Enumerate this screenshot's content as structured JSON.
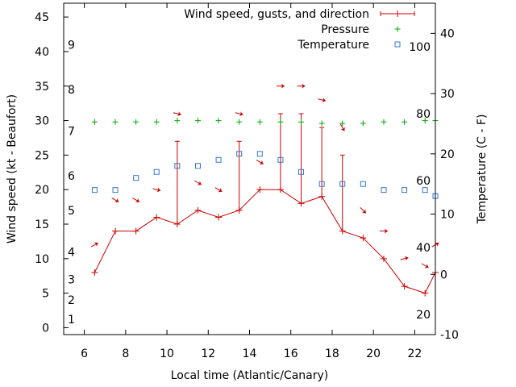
{
  "chart_data": {
    "type": "line",
    "title": "",
    "xlabel": "Local time (Atlantic/Canary)",
    "ylabel_left": "Wind speed (kt - Beaufort)",
    "ylabel_right": "Temperature (C - F)",
    "x_range": [
      5,
      23
    ],
    "y_left_range": [
      -1,
      47
    ],
    "y_right_range": [
      -10,
      45
    ],
    "x_ticks": [
      "6",
      "8",
      "10",
      "12",
      "14",
      "16",
      "18",
      "20",
      "22"
    ],
    "y_left_ticks": [
      "0",
      "5",
      "10",
      "15",
      "20",
      "25",
      "30",
      "35",
      "40",
      "45"
    ],
    "y_right_ticks": [
      "-10",
      "0",
      "10",
      "20",
      "30",
      "40"
    ],
    "beaufort_labels": [
      "1",
      "2",
      "3",
      "4",
      "5",
      "6",
      "7",
      "8",
      "9"
    ],
    "fahrenheit_labels": [
      "20",
      "40",
      "60",
      "80",
      "100"
    ],
    "legend": {
      "placement": "top-right",
      "entries": [
        {
          "label": "Wind speed, gusts, and direction",
          "color": "#cc0000",
          "marker": "line-plus"
        },
        {
          "label": "Pressure",
          "color": "#00aa00",
          "marker": "plus"
        },
        {
          "label": "Temperature",
          "color": "#3377cc",
          "marker": "square"
        }
      ]
    },
    "series": [
      {
        "name": "Wind speed, gusts, and direction",
        "color": "#cc0000",
        "x": [
          6.5,
          7.5,
          8.5,
          9.5,
          10.5,
          11.5,
          12.5,
          13.5,
          14.5,
          15.5,
          16.5,
          17.5,
          18.5,
          19.5,
          20.5,
          21.5,
          22.5,
          23
        ],
        "speed": [
          8,
          14,
          14,
          16,
          15,
          17,
          16,
          17,
          20,
          20,
          18,
          19,
          14,
          13,
          10,
          6,
          5,
          8
        ],
        "gust": [
          null,
          null,
          null,
          null,
          27,
          null,
          null,
          27,
          null,
          31,
          31,
          29,
          25,
          null,
          null,
          null,
          null,
          null
        ]
      },
      {
        "name": "Pressure",
        "color": "#00aa00",
        "x": [
          6.5,
          7.5,
          8.5,
          9.5,
          10.5,
          11.5,
          12.5,
          13.5,
          14.5,
          15.5,
          16.5,
          17.5,
          18.5,
          19.5,
          20.5,
          21.5,
          22.5,
          23
        ],
        "values": [
          29.8,
          29.8,
          29.8,
          29.8,
          30.0,
          30.0,
          30.0,
          29.8,
          29.8,
          29.8,
          29.8,
          29.6,
          29.6,
          29.6,
          29.8,
          29.8,
          30.0,
          30.0
        ]
      },
      {
        "name": "Temperature",
        "color": "#3377cc",
        "x": [
          6.5,
          7.5,
          8.5,
          9.5,
          10.5,
          11.5,
          12.5,
          13.5,
          14.5,
          15.5,
          16.5,
          17.5,
          18.5,
          19.5,
          20.5,
          21.5,
          22.5,
          23
        ],
        "values": [
          14,
          14,
          16,
          17,
          18,
          18,
          19,
          20,
          20,
          19,
          17,
          15,
          15,
          15,
          14,
          14,
          14,
          13
        ]
      }
    ],
    "direction_arrows": {
      "color": "#cc0000",
      "x": [
        6.5,
        7.5,
        8.5,
        9.5,
        10.5,
        11.5,
        12.5,
        13.5,
        14.5,
        15.5,
        16.5,
        17.5,
        18.5,
        19.5,
        20.5,
        21.5,
        22.5,
        23
      ],
      "y": [
        12,
        18.5,
        18.5,
        20,
        31,
        21,
        20,
        31,
        24,
        35,
        35,
        33,
        29,
        17,
        14,
        10,
        9,
        12
      ],
      "direction_deg": [
        -30,
        30,
        30,
        15,
        15,
        30,
        30,
        15,
        30,
        0,
        0,
        15,
        60,
        45,
        0,
        -15,
        30,
        -30
      ]
    }
  }
}
